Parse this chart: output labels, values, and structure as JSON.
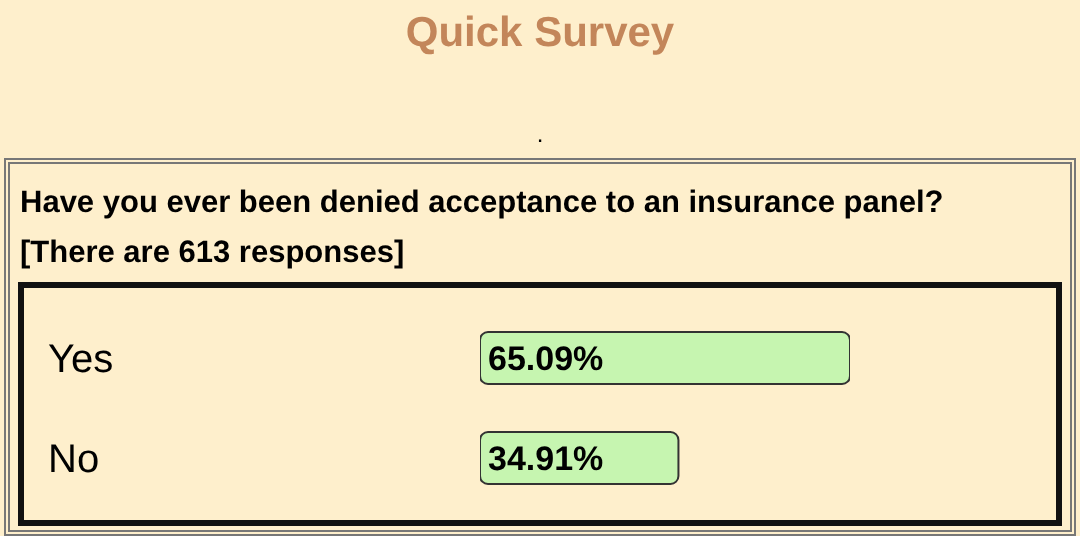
{
  "chart_data": {
    "type": "bar",
    "orientation": "horizontal",
    "title": "Quick Survey",
    "subtitle": "Have you ever been denied acceptance to an insurance panel?",
    "annotations": [
      ".",
      "[There are 613 responses]"
    ],
    "categories": [
      "Yes",
      "No"
    ],
    "values": [
      65.09,
      34.91
    ],
    "value_labels": [
      "65.09%",
      "34.91%"
    ],
    "color": "#c6f5b0",
    "legend": false,
    "grid": false
  }
}
